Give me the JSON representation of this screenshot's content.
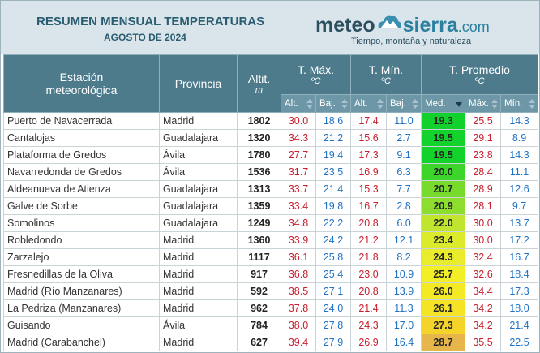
{
  "header": {
    "title": "RESUMEN MENSUAL TEMPERATURAS",
    "subtitle": "AGOSTO DE 2024",
    "logo": {
      "meteo": "meteo",
      "sierra": "sierra",
      "domain": ".com",
      "tagline": "Tiempo, montaña y naturaleza"
    }
  },
  "table": {
    "columns": {
      "station": "Estación meteorológica",
      "province": "Provincia",
      "altitude": "Altit.",
      "altitude_unit": "m",
      "tmax": "T. Máx.",
      "tmin": "T. Mín.",
      "tavg": "T. Promedio",
      "unit": "ºC"
    },
    "subcolumns": [
      "Alt.",
      "Baj.",
      "Alt.",
      "Baj.",
      "Med.",
      "Máx.",
      "Mín."
    ],
    "rows": [
      [
        "Puerto de Navacerrada",
        "Madrid",
        "1802",
        "30.0",
        "18.6",
        "17.4",
        "11.0",
        "19.3",
        "25.5",
        "14.3"
      ],
      [
        "Cantalojas",
        "Guadalajara",
        "1320",
        "34.3",
        "21.2",
        "15.6",
        "2.7",
        "19.5",
        "29.1",
        "8.9"
      ],
      [
        "Plataforma de Gredos",
        "Ávila",
        "1780",
        "27.7",
        "19.4",
        "17.3",
        "9.1",
        "19.5",
        "23.8",
        "14.3"
      ],
      [
        "Navarredonda de Gredos",
        "Ávila",
        "1536",
        "31.7",
        "23.5",
        "16.9",
        "6.3",
        "20.0",
        "28.4",
        "11.1"
      ],
      [
        "Aldeanueva de Atienza",
        "Guadalajara",
        "1313",
        "33.7",
        "21.4",
        "15.3",
        "7.7",
        "20.7",
        "28.9",
        "12.6"
      ],
      [
        "Galve de Sorbe",
        "Guadalajara",
        "1359",
        "33.4",
        "19.8",
        "16.7",
        "2.8",
        "20.9",
        "28.1",
        "9.7"
      ],
      [
        "Somolinos",
        "Guadalajara",
        "1249",
        "34.8",
        "22.2",
        "20.8",
        "6.0",
        "22.0",
        "30.0",
        "13.7"
      ],
      [
        "Robledondo",
        "Madrid",
        "1360",
        "33.9",
        "24.2",
        "21.2",
        "12.1",
        "23.4",
        "30.0",
        "17.2"
      ],
      [
        "Zarzalejo",
        "Madrid",
        "1117",
        "36.1",
        "25.8",
        "21.8",
        "8.2",
        "24.3",
        "32.4",
        "16.7"
      ],
      [
        "Fresnedillas de la Oliva",
        "Madrid",
        "917",
        "36.8",
        "25.4",
        "23.0",
        "10.9",
        "25.7",
        "32.6",
        "18.4"
      ],
      [
        "Madrid (Río Manzanares)",
        "Madrid",
        "592",
        "38.5",
        "27.1",
        "20.8",
        "13.9",
        "26.0",
        "34.4",
        "17.3"
      ],
      [
        "La Pedriza (Manzanares)",
        "Madrid",
        "962",
        "37.8",
        "24.0",
        "21.4",
        "11.3",
        "26.1",
        "34.2",
        "18.0"
      ],
      [
        "Guisando",
        "Ávila",
        "784",
        "38.0",
        "27.8",
        "24.3",
        "17.0",
        "27.3",
        "34.2",
        "21.4"
      ],
      [
        "Madrid (Carabanchel)",
        "Madrid",
        "627",
        "39.4",
        "27.9",
        "26.9",
        "16.4",
        "28.7",
        "35.5",
        "22.5"
      ]
    ],
    "med_colors": [
      "#12d12c",
      "#14d22c",
      "#14d22c",
      "#3dd52c",
      "#78db2c",
      "#8ddd2e",
      "#bfe52e",
      "#dcea2c",
      "#e9ec2a",
      "#f2ee28",
      "#f4e925",
      "#f5e326",
      "#f4d42a",
      "#e7b64a"
    ]
  }
}
